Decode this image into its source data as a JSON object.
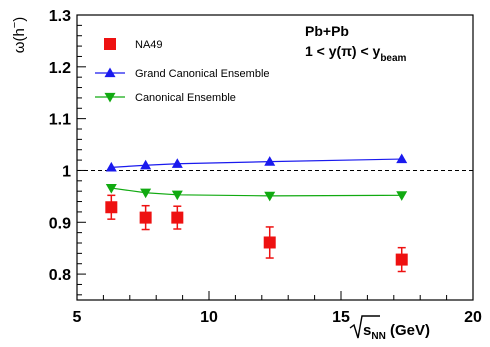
{
  "chart_data": {
    "type": "scatter",
    "xlabel": "√s_NN (GeV)",
    "xlabel_parts": {
      "main": "s",
      "sub": "NN",
      "unit": " (GeV)"
    },
    "ylabel": "ω(h⁻)",
    "ylabel_parts": {
      "main": "ω(h",
      "sup": "−",
      "close": ")"
    },
    "xlim": [
      5,
      20
    ],
    "ylim": [
      0.75,
      1.3
    ],
    "xticks": [
      5,
      10,
      15,
      20
    ],
    "xtick_labels": [
      "5",
      "10",
      "15",
      "20"
    ],
    "yticks": [
      0.8,
      0.9,
      1.0,
      1.1,
      1.2,
      1.3
    ],
    "ytick_labels": [
      "0.8",
      "0.9",
      "1",
      "1.1",
      "1.2",
      "1.3"
    ],
    "reference_line": {
      "y": 1.0,
      "style": "dashed",
      "color": "#000000"
    },
    "annotation": {
      "line1": "Pb+Pb",
      "line2_prefix": "1 < y(π) < y",
      "line2_sub": "beam"
    },
    "legend_placement": "top-left",
    "series": [
      {
        "name": "NA49",
        "kind": "data",
        "marker": "square",
        "color": "#ee1111",
        "x": [
          6.3,
          7.6,
          8.8,
          12.3,
          17.3
        ],
        "y": [
          0.929,
          0.909,
          0.909,
          0.861,
          0.828
        ],
        "err": [
          0.023,
          0.023,
          0.022,
          0.03,
          0.023
        ]
      },
      {
        "name": "Grand Canonical Ensemble",
        "kind": "model",
        "marker": "triangle-up",
        "color": "#1a1aee",
        "x": [
          6.3,
          7.6,
          8.8,
          12.3,
          17.3
        ],
        "y": [
          1.006,
          1.01,
          1.013,
          1.017,
          1.022
        ]
      },
      {
        "name": "Canonical Ensemble",
        "kind": "model",
        "marker": "triangle-down",
        "color": "#11aa11",
        "x": [
          6.3,
          7.6,
          8.8,
          12.3,
          17.3
        ],
        "y": [
          0.966,
          0.957,
          0.953,
          0.951,
          0.952
        ]
      }
    ]
  }
}
